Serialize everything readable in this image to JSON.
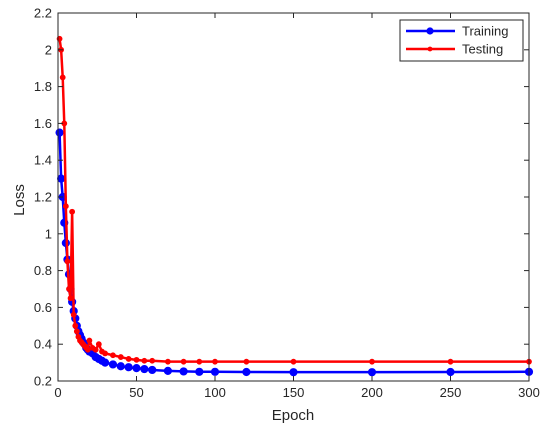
{
  "chart_data": {
    "type": "line",
    "title": "",
    "xlabel": "Epoch",
    "ylabel": "Loss",
    "xlim": [
      0,
      300
    ],
    "ylim": [
      0.2,
      2.2
    ],
    "xticks": [
      "0",
      "50",
      "100",
      "150",
      "200",
      "250",
      "300"
    ],
    "yticks": [
      "0.2",
      "0.4",
      "0.6",
      "0.8",
      "1",
      "1.2",
      "1.4",
      "1.6",
      "1.8",
      "2",
      "2.2"
    ],
    "legend": {
      "position": "top-right",
      "entries": [
        "Training",
        "Testing"
      ]
    },
    "grid": false,
    "series": [
      {
        "name": "Training",
        "color": "#0000ff",
        "marker_size": "large",
        "x": [
          1,
          2,
          3,
          4,
          5,
          6,
          7,
          8,
          9,
          10,
          11,
          12,
          13,
          14,
          15,
          16,
          17,
          18,
          19,
          20,
          22,
          24,
          26,
          28,
          30,
          35,
          40,
          45,
          50,
          55,
          60,
          70,
          80,
          90,
          100,
          120,
          150,
          200,
          250,
          300
        ],
        "y": [
          1.55,
          1.3,
          1.2,
          1.06,
          0.95,
          0.86,
          0.78,
          0.7,
          0.63,
          0.58,
          0.54,
          0.5,
          0.47,
          0.45,
          0.43,
          0.41,
          0.4,
          0.38,
          0.37,
          0.36,
          0.35,
          0.33,
          0.32,
          0.31,
          0.3,
          0.29,
          0.28,
          0.275,
          0.27,
          0.265,
          0.26,
          0.255,
          0.252,
          0.25,
          0.25,
          0.249,
          0.248,
          0.248,
          0.249,
          0.25
        ]
      },
      {
        "name": "Testing",
        "color": "#ff0000",
        "marker_size": "small",
        "x": [
          1,
          2,
          3,
          4,
          5,
          6,
          7,
          8,
          9,
          10,
          11,
          12,
          13,
          14,
          15,
          16,
          17,
          18,
          19,
          20,
          22,
          24,
          26,
          28,
          30,
          35,
          40,
          45,
          50,
          55,
          60,
          70,
          80,
          90,
          100,
          120,
          150,
          200,
          250,
          300
        ],
        "y": [
          2.06,
          2.0,
          1.85,
          1.6,
          1.15,
          0.85,
          0.7,
          0.65,
          1.12,
          0.56,
          0.5,
          0.47,
          0.44,
          0.42,
          0.41,
          0.4,
          0.39,
          0.38,
          0.37,
          0.42,
          0.38,
          0.37,
          0.4,
          0.36,
          0.35,
          0.34,
          0.33,
          0.32,
          0.315,
          0.31,
          0.31,
          0.305,
          0.305,
          0.305,
          0.305,
          0.305,
          0.305,
          0.305,
          0.305,
          0.305
        ]
      }
    ]
  }
}
